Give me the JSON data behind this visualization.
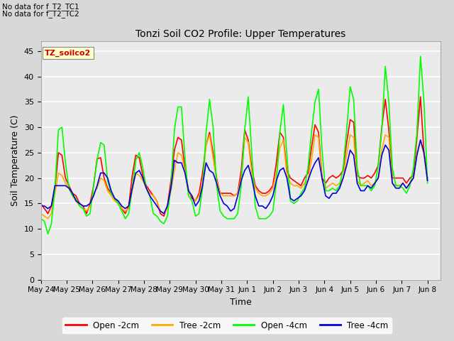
{
  "title": "Tonzi Soil CO2 Profile: Upper Temperatures",
  "xlabel": "Time",
  "ylabel": "Soil Temperature (C)",
  "no_data_text_1": "No data for f_T2_TC1",
  "no_data_text_2": "No data for f_T2_TC2",
  "dataset_label": "TZ_soilco2",
  "ylim": [
    0,
    47
  ],
  "yticks": [
    0,
    5,
    10,
    15,
    20,
    25,
    30,
    35,
    40,
    45
  ],
  "legend_entries": [
    "Open -2cm",
    "Tree -2cm",
    "Open -4cm",
    "Tree -4cm"
  ],
  "line_colors": [
    "#ff0000",
    "#ffaa00",
    "#00ff00",
    "#0000dd"
  ],
  "bg_color": "#d8d8d8",
  "plot_bg": "#ebebeb",
  "grid_color": "#ffffff",
  "x_tick_labels": [
    "May 24",
    "May 25",
    "May 26",
    "May 27",
    "May 28",
    "May 29",
    "May 30",
    "May 31",
    "Jun 1",
    "Jun 2",
    "Jun 3",
    "Jun 4",
    "Jun 5",
    "Jun 6",
    "Jun 7",
    "Jun 8"
  ],
  "open_2cm": [
    15.0,
    14.0,
    13.0,
    14.5,
    18.0,
    25.0,
    24.5,
    20.0,
    18.5,
    17.0,
    16.5,
    15.0,
    14.5,
    13.0,
    15.0,
    18.5,
    23.8,
    24.0,
    20.0,
    18.0,
    17.0,
    16.0,
    15.0,
    14.0,
    13.0,
    14.5,
    20.5,
    24.5,
    24.0,
    20.5,
    18.5,
    17.5,
    16.5,
    15.5,
    13.0,
    12.5,
    14.5,
    19.5,
    25.5,
    28.0,
    27.5,
    22.0,
    17.5,
    16.0,
    15.5,
    17.0,
    21.0,
    26.5,
    29.0,
    25.0,
    20.0,
    17.0,
    17.0,
    17.0,
    17.0,
    16.5,
    17.0,
    21.5,
    29.5,
    27.5,
    22.0,
    18.5,
    17.5,
    17.0,
    17.0,
    17.5,
    18.5,
    23.0,
    29.0,
    28.0,
    21.5,
    20.0,
    19.5,
    19.0,
    18.5,
    20.0,
    21.0,
    26.0,
    30.5,
    29.0,
    20.0,
    19.0,
    20.0,
    20.5,
    20.0,
    20.5,
    21.5,
    27.0,
    31.5,
    31.0,
    20.5,
    20.0,
    20.0,
    20.5,
    20.0,
    21.0,
    22.5,
    30.0,
    35.5,
    29.5,
    20.0,
    20.0,
    20.0,
    20.0,
    19.0,
    20.0,
    20.5,
    28.0,
    36.0,
    25.0,
    20.0
  ],
  "tree_2cm": [
    13.0,
    12.5,
    12.0,
    13.0,
    17.0,
    21.0,
    20.5,
    19.0,
    18.0,
    16.5,
    15.5,
    14.5,
    14.0,
    13.5,
    14.5,
    17.0,
    18.0,
    20.0,
    19.5,
    17.5,
    16.5,
    15.5,
    15.0,
    14.0,
    13.5,
    14.0,
    17.5,
    21.0,
    20.5,
    19.5,
    18.0,
    17.0,
    16.5,
    15.5,
    13.5,
    13.0,
    14.0,
    17.5,
    21.5,
    25.0,
    24.5,
    21.5,
    17.0,
    16.5,
    15.5,
    16.5,
    19.0,
    26.5,
    28.5,
    24.0,
    19.5,
    17.0,
    16.5,
    16.5,
    16.5,
    16.5,
    17.0,
    20.0,
    28.0,
    27.0,
    21.0,
    18.0,
    17.0,
    16.5,
    16.5,
    17.0,
    18.0,
    21.0,
    26.0,
    27.5,
    20.5,
    19.0,
    18.5,
    18.5,
    18.0,
    19.0,
    19.5,
    23.5,
    28.5,
    28.0,
    19.5,
    18.0,
    18.5,
    19.0,
    18.5,
    19.0,
    20.0,
    24.5,
    28.5,
    28.0,
    19.5,
    18.5,
    19.0,
    19.5,
    18.5,
    19.0,
    20.0,
    25.5,
    28.5,
    28.0,
    19.0,
    18.5,
    18.5,
    19.0,
    18.0,
    19.0,
    20.0,
    25.0,
    27.5,
    24.5,
    19.5
  ],
  "open_4cm": [
    12.0,
    11.5,
    9.0,
    11.0,
    18.0,
    29.5,
    30.0,
    23.0,
    18.0,
    16.5,
    16.0,
    14.5,
    14.0,
    12.5,
    13.0,
    18.5,
    23.5,
    27.0,
    26.5,
    19.5,
    17.0,
    16.0,
    15.0,
    13.5,
    12.0,
    13.0,
    18.0,
    23.5,
    25.0,
    22.0,
    18.0,
    16.5,
    13.0,
    12.5,
    11.5,
    11.0,
    12.5,
    18.5,
    29.5,
    34.0,
    34.0,
    24.0,
    16.5,
    15.5,
    12.5,
    13.0,
    18.0,
    29.0,
    35.5,
    30.0,
    18.5,
    13.5,
    12.5,
    12.0,
    12.0,
    12.0,
    13.0,
    18.5,
    29.5,
    36.0,
    25.0,
    14.5,
    12.0,
    12.0,
    12.0,
    12.5,
    13.5,
    19.0,
    29.0,
    34.5,
    24.5,
    15.5,
    15.0,
    15.5,
    17.0,
    18.0,
    22.0,
    29.0,
    35.0,
    37.5,
    25.5,
    17.5,
    17.5,
    18.0,
    17.5,
    18.5,
    22.0,
    29.5,
    38.0,
    35.5,
    22.0,
    18.5,
    18.5,
    18.5,
    17.5,
    18.5,
    22.5,
    29.5,
    42.0,
    35.0,
    22.0,
    18.5,
    18.5,
    18.0,
    17.0,
    18.5,
    22.0,
    29.0,
    44.0,
    35.0,
    19.0
  ],
  "tree_4cm": [
    14.5,
    14.5,
    14.0,
    14.5,
    18.5,
    18.5,
    18.5,
    18.5,
    18.0,
    17.0,
    15.5,
    15.0,
    14.5,
    14.5,
    15.0,
    16.5,
    18.5,
    21.0,
    21.0,
    20.0,
    17.5,
    16.0,
    15.5,
    14.5,
    14.0,
    14.5,
    18.0,
    21.0,
    21.5,
    20.0,
    18.0,
    16.5,
    15.5,
    14.5,
    13.5,
    13.0,
    14.5,
    18.0,
    23.5,
    23.0,
    23.0,
    21.0,
    17.5,
    16.5,
    14.5,
    15.5,
    18.5,
    23.0,
    21.5,
    21.0,
    19.0,
    16.5,
    15.0,
    14.5,
    13.5,
    14.0,
    16.5,
    19.5,
    21.5,
    22.5,
    20.0,
    16.5,
    14.5,
    14.5,
    14.0,
    15.0,
    16.5,
    19.5,
    21.5,
    22.0,
    20.0,
    16.0,
    15.5,
    16.0,
    16.5,
    17.5,
    19.5,
    21.5,
    23.0,
    24.0,
    20.0,
    16.5,
    16.0,
    17.0,
    17.0,
    18.0,
    20.0,
    22.5,
    25.5,
    24.5,
    19.0,
    17.5,
    17.5,
    18.5,
    18.0,
    19.0,
    20.0,
    24.5,
    26.5,
    25.5,
    19.0,
    18.0,
    18.0,
    19.0,
    18.0,
    19.0,
    20.0,
    24.5,
    27.5,
    25.0,
    19.5
  ]
}
